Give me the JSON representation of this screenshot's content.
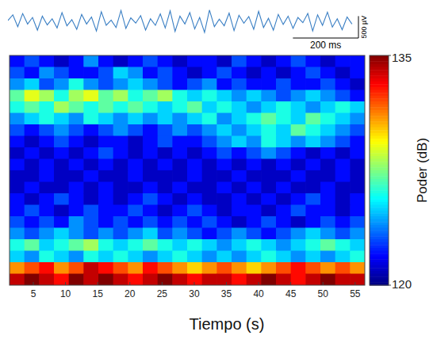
{
  "chart_data": {
    "type": "heatmap",
    "xlabel": "Tiempo (s)",
    "xlim": [
      1.3,
      56.5
    ],
    "xticks": [
      5,
      10,
      15,
      20,
      25,
      30,
      35,
      40,
      45,
      50,
      55
    ],
    "tick_labels": "x",
    "cells": [
      [
        122,
        123,
        122,
        121,
        122,
        124,
        122,
        121,
        122,
        123,
        122,
        121,
        122,
        122,
        121,
        123,
        122,
        121,
        122,
        123,
        122,
        121,
        122,
        122
      ],
      [
        123,
        122,
        124,
        123,
        122,
        122,
        123,
        125,
        124,
        122,
        123,
        122,
        121,
        122,
        123,
        122,
        121,
        122,
        121,
        122,
        123,
        122,
        121,
        122
      ],
      [
        124,
        125,
        123,
        124,
        126,
        124,
        123,
        124,
        125,
        124,
        123,
        122,
        123,
        124,
        122,
        123,
        122,
        122,
        123,
        122,
        122,
        123,
        122,
        121
      ],
      [
        127,
        129,
        128,
        126,
        128,
        129,
        127,
        128,
        126,
        127,
        128,
        126,
        125,
        126,
        125,
        124,
        125,
        124,
        123,
        124,
        125,
        124,
        123,
        122
      ],
      [
        126,
        127,
        126,
        128,
        127,
        126,
        127,
        126,
        127,
        126,
        125,
        126,
        127,
        125,
        126,
        125,
        124,
        125,
        126,
        125,
        124,
        125,
        126,
        125
      ],
      [
        124,
        125,
        126,
        125,
        124,
        126,
        125,
        124,
        125,
        124,
        125,
        124,
        125,
        126,
        124,
        125,
        126,
        127,
        126,
        125,
        127,
        126,
        125,
        124
      ],
      [
        123,
        122,
        123,
        124,
        123,
        122,
        123,
        124,
        123,
        122,
        123,
        124,
        123,
        124,
        125,
        124,
        125,
        126,
        125,
        127,
        126,
        125,
        124,
        123
      ],
      [
        122,
        121,
        122,
        123,
        122,
        121,
        122,
        122,
        121,
        122,
        123,
        122,
        122,
        123,
        124,
        125,
        124,
        126,
        125,
        124,
        125,
        124,
        123,
        122
      ],
      [
        121,
        122,
        121,
        122,
        121,
        122,
        123,
        122,
        121,
        122,
        121,
        122,
        121,
        122,
        123,
        122,
        123,
        124,
        123,
        122,
        121,
        122,
        121,
        122
      ],
      [
        122,
        121,
        122,
        121,
        122,
        121,
        122,
        121,
        122,
        121,
        122,
        121,
        122,
        121,
        122,
        121,
        122,
        121,
        122,
        121,
        122,
        121,
        122,
        121
      ],
      [
        121,
        121,
        122,
        121,
        121,
        122,
        121,
        121,
        122,
        121,
        121,
        121,
        122,
        121,
        121,
        122,
        121,
        121,
        121,
        122,
        121,
        121,
        122,
        121
      ],
      [
        121,
        122,
        121,
        121,
        122,
        121,
        122,
        121,
        121,
        122,
        121,
        122,
        121,
        121,
        122,
        121,
        122,
        121,
        122,
        121,
        121,
        122,
        121,
        121
      ],
      [
        122,
        121,
        122,
        123,
        122,
        121,
        122,
        121,
        122,
        123,
        122,
        121,
        122,
        121,
        121,
        122,
        121,
        122,
        121,
        122,
        123,
        122,
        121,
        122
      ],
      [
        122,
        123,
        122,
        121,
        122,
        123,
        122,
        122,
        123,
        122,
        121,
        122,
        123,
        122,
        121,
        122,
        122,
        121,
        122,
        123,
        122,
        122,
        121,
        122
      ],
      [
        123,
        122,
        123,
        122,
        124,
        123,
        122,
        123,
        122,
        123,
        122,
        123,
        122,
        123,
        122,
        121,
        122,
        123,
        122,
        121,
        122,
        123,
        122,
        123
      ],
      [
        124,
        123,
        124,
        125,
        124,
        123,
        124,
        123,
        124,
        125,
        123,
        124,
        123,
        122,
        123,
        124,
        123,
        122,
        123,
        124,
        125,
        124,
        123,
        124
      ],
      [
        126,
        127,
        125,
        126,
        127,
        128,
        126,
        125,
        126,
        127,
        126,
        125,
        126,
        125,
        124,
        125,
        126,
        125,
        124,
        125,
        126,
        127,
        126,
        125
      ],
      [
        125,
        124,
        126,
        125,
        124,
        126,
        125,
        126,
        125,
        124,
        125,
        126,
        125,
        124,
        125,
        124,
        125,
        126,
        125,
        124,
        125,
        124,
        125,
        126
      ],
      [
        131,
        132,
        133,
        131,
        132,
        134,
        133,
        132,
        131,
        133,
        132,
        131,
        130,
        131,
        132,
        131,
        130,
        131,
        132,
        133,
        132,
        131,
        132,
        131
      ],
      [
        134,
        135,
        134,
        133,
        135,
        134,
        135,
        134,
        133,
        134,
        135,
        134,
        133,
        134,
        134,
        133,
        134,
        135,
        134,
        133,
        134,
        135,
        134,
        134
      ]
    ],
    "colorbar": {
      "label": "Poder (dB)",
      "range": [
        120,
        135
      ],
      "ticks": [
        120,
        135
      ]
    },
    "trace": {
      "xlim": [
        0,
        1060
      ],
      "ylim": [
        -380,
        380
      ],
      "color": "#3a7fc4",
      "x": [
        0,
        15,
        30,
        45,
        60,
        75,
        90,
        105,
        120,
        135,
        150,
        165,
        180,
        195,
        210,
        225,
        240,
        255,
        270,
        285,
        300,
        315,
        330,
        345,
        360,
        375,
        390,
        405,
        420,
        435,
        450,
        465,
        480,
        495,
        510,
        525,
        540,
        555,
        570,
        585,
        600,
        615,
        630,
        645,
        660,
        675,
        690,
        705,
        720,
        735,
        750,
        765,
        780,
        795,
        810,
        825,
        840,
        855,
        870,
        885,
        900,
        915,
        930,
        945,
        960,
        975,
        990,
        1005,
        1020,
        1035,
        1050
      ],
      "values": [
        20,
        150,
        -120,
        180,
        -60,
        90,
        -200,
        120,
        -80,
        60,
        -150,
        200,
        -100,
        40,
        -180,
        160,
        -60,
        100,
        -220,
        220,
        -90,
        30,
        -140,
        250,
        -160,
        80,
        -40,
        130,
        -200,
        60,
        -90,
        170,
        -150,
        240,
        -230,
        120,
        -60,
        200,
        -170,
        90,
        -250,
        260,
        -120,
        50,
        -100,
        190,
        -210,
        140,
        -40,
        110,
        -180,
        230,
        -140,
        70,
        -200,
        160,
        -70,
        120,
        -160,
        90,
        -30,
        180,
        -220,
        150,
        -90,
        210,
        -130,
        60,
        -190,
        100,
        -60
      ],
      "scale_bars": [
        {
          "axis": "y",
          "value": 500,
          "label": "500 µV"
        },
        {
          "axis": "x",
          "value": 200,
          "label": "200 ms"
        }
      ]
    }
  }
}
